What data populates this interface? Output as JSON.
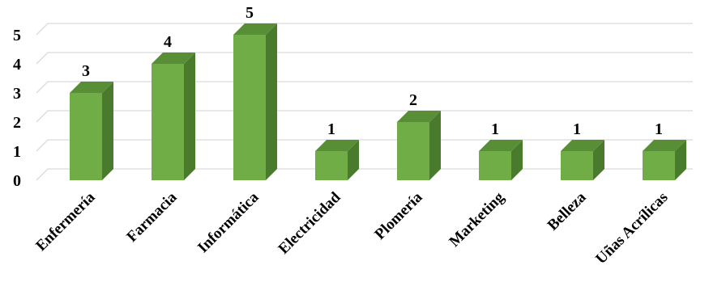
{
  "chart_data": {
    "type": "bar",
    "style": "3d-column",
    "categories": [
      "Enfermería",
      "Farmacia",
      "Informática",
      "Electricidad",
      "Plomería",
      "Marketing",
      "Belleza",
      "Uñas Acrílicas"
    ],
    "values": [
      3,
      4,
      5,
      1,
      2,
      1,
      1,
      1
    ],
    "data_labels": [
      "3",
      "4",
      "5",
      "1",
      "2",
      "1",
      "1",
      "1"
    ],
    "title": "",
    "xlabel": "",
    "ylabel": "",
    "ylim": [
      0,
      5
    ],
    "yticks": [
      "0",
      "1",
      "2",
      "3",
      "4",
      "5"
    ],
    "grid": true,
    "legend": "none",
    "colors": {
      "bar_front": "#70ad47",
      "bar_side": "#4a7a2c",
      "bar_top": "#588f36",
      "grid": "#d9d9d9"
    }
  }
}
